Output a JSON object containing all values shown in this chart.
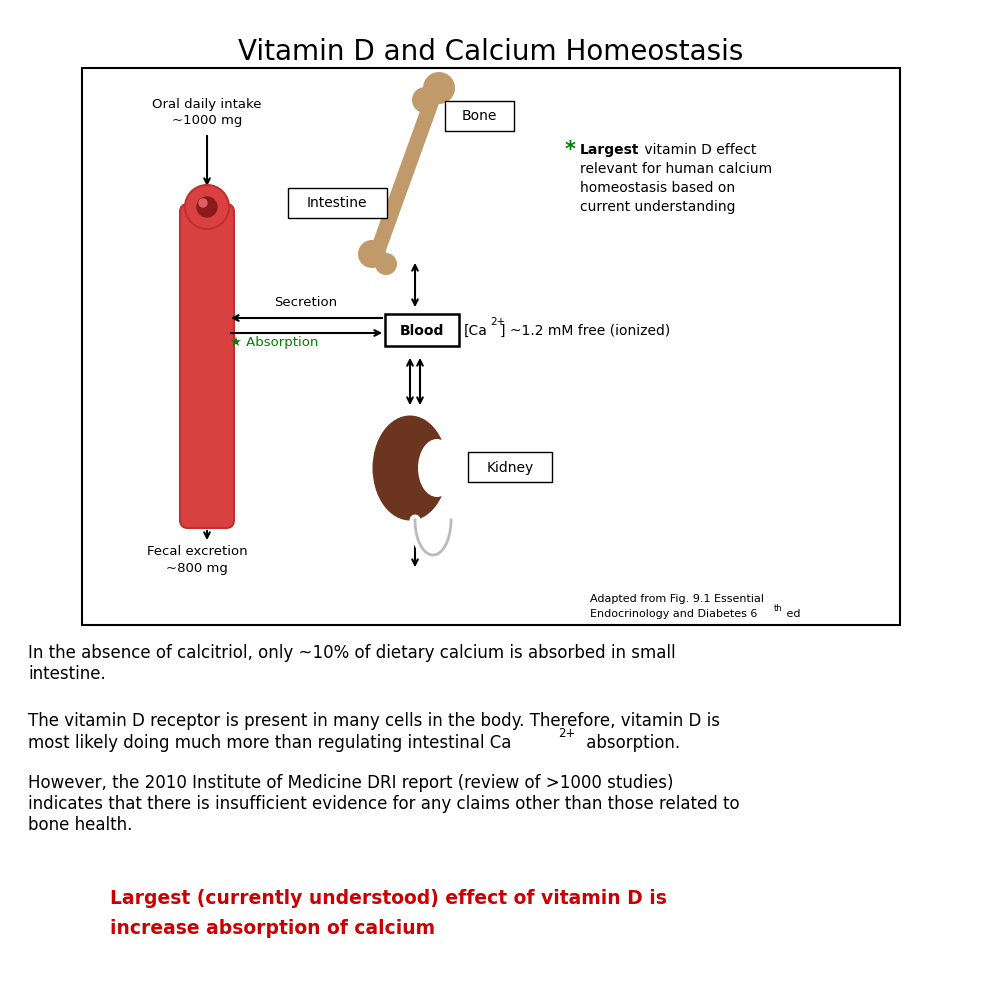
{
  "title": "Vitamin D and Calcium Homeostasis",
  "title_fontsize": 20,
  "background_color": "#ffffff",
  "text_color": "#000000",
  "red_color": "#cc0000",
  "green_color": "#008000",
  "bone_color": "#c19a6b",
  "kidney_color": "#6b3520",
  "intestine_color_main": "#d94040",
  "intestine_color_dark": "#c03030",
  "paragraph1": "In the absence of calcitriol, only ~10% of dietary calcium is absorbed in small\nintestine.",
  "paragraph3": "However, the 2010 Institute of Medicine DRI report (review of >1000 studies)\nindicates that there is insufficient evidence for any claims other than those related to\nbone health.",
  "red_text_line1": "Largest (currently understood) effect of vitamin D is",
  "red_text_line2": "increase absorption of calcium"
}
